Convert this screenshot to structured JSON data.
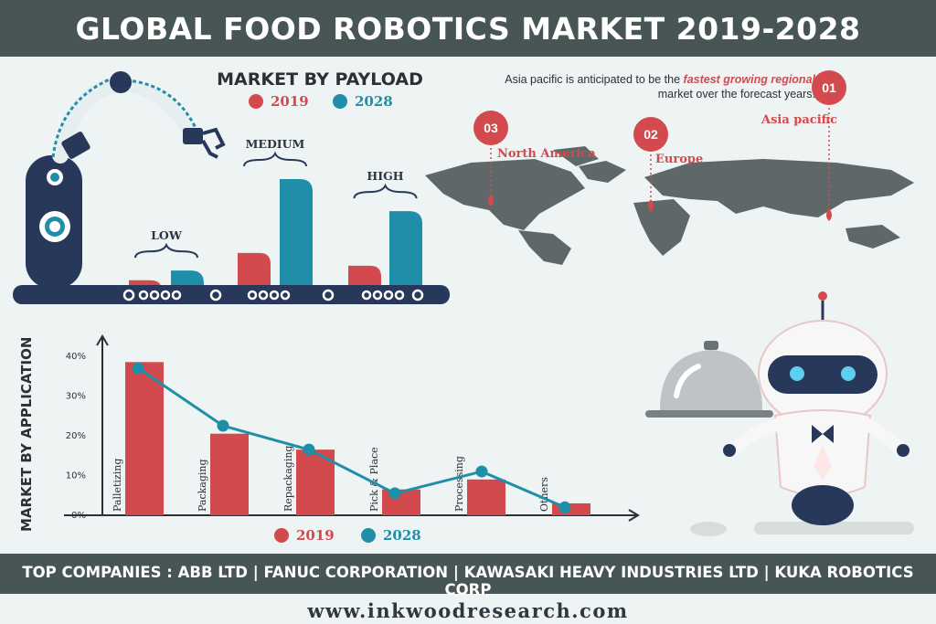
{
  "header": {
    "title": "GLOBAL FOOD ROBOTICS MARKET 2019-2028"
  },
  "colors": {
    "c2019": "#d24a4d",
    "c2028": "#1f8fa9",
    "dark": "#475554",
    "navy": "#27385a"
  },
  "payload_section": {
    "title": "MARKET BY PAYLOAD",
    "legend": {
      "y2019": "2019",
      "y2028": "2028"
    },
    "labels": {
      "low": "LOW",
      "medium": "MEDIUM",
      "high": "HIGH"
    }
  },
  "regional_section": {
    "text_before": "Asia pacific is anticipated to be the ",
    "text_emphasis": "fastest growing regional",
    "text_after": "market over the forecast years.",
    "markers": [
      {
        "rank": "01",
        "region": "Asia pacific"
      },
      {
        "rank": "02",
        "region": "Europe"
      },
      {
        "rank": "03",
        "region": "North America"
      }
    ]
  },
  "application_section": {
    "axis_title": "MARKET BY APPLICATION",
    "legend": {
      "y2019": "2019",
      "y2028": "2028"
    }
  },
  "footer": {
    "companies": "TOP COMPANIES : ABB LTD | FANUC CORPORATION | KAWASAKI HEAVY INDUSTRIES LTD | KUKA ROBOTICS CORP",
    "url": "www.inkwoodresearch.com"
  },
  "icons": [
    "robot-arm-icon",
    "conveyor-belt-icon",
    "world-map-icon",
    "waiter-robot-icon",
    "serving-cloche-icon",
    "location-pin-icon"
  ],
  "chart_data": [
    {
      "type": "bar",
      "title": "MARKET BY PAYLOAD",
      "categories": [
        "LOW",
        "MEDIUM",
        "HIGH"
      ],
      "series": [
        {
          "name": "2019",
          "values": [
            1.5,
            10,
            6
          ]
        },
        {
          "name": "2028",
          "values": [
            4.5,
            33,
            23
          ]
        }
      ],
      "ylim": [
        0,
        35
      ],
      "axes_shown": false
    },
    {
      "type": "bar",
      "title": "",
      "ylabel": "MARKET BY APPLICATION",
      "categories": [
        "Palletizing",
        "Packaging",
        "Repackaging",
        "Pick & Place",
        "Processing",
        "Others"
      ],
      "y_ticks": [
        "0%",
        "10%",
        "20%",
        "30%",
        "40%"
      ],
      "ylim": [
        0,
        45
      ],
      "series": [
        {
          "name": "2019",
          "type": "bar",
          "values": [
            38.5,
            20.5,
            16.5,
            6.5,
            9,
            3
          ]
        },
        {
          "name": "2028",
          "type": "line",
          "values": [
            37,
            22.5,
            16.5,
            5.5,
            11,
            2
          ]
        }
      ]
    }
  ]
}
